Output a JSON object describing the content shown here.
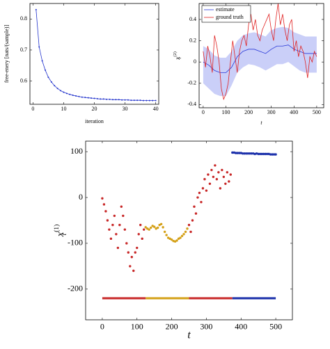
{
  "chart_data": [
    {
      "type": "line",
      "xlabel": "iteration",
      "ylabel": "free-enery [nats/(sample)]",
      "xlim": [
        -1,
        41
      ],
      "xticks": [
        0,
        10,
        20,
        30,
        40
      ],
      "ylim": [
        0.525,
        0.85
      ],
      "yticks": [
        0.6,
        0.7,
        0.8
      ],
      "markers": true,
      "series": [
        {
          "name": "free energy",
          "color": "#2233cc",
          "x": [
            1,
            2,
            3,
            4,
            5,
            6,
            7,
            8,
            9,
            10,
            11,
            12,
            13,
            14,
            15,
            16,
            17,
            18,
            19,
            20,
            21,
            22,
            23,
            24,
            25,
            26,
            27,
            28,
            29,
            30,
            31,
            32,
            33,
            34,
            35,
            36,
            37,
            38,
            39,
            40
          ],
          "values": [
            0.83,
            0.71,
            0.665,
            0.635,
            0.612,
            0.597,
            0.585,
            0.576,
            0.569,
            0.564,
            0.56,
            0.557,
            0.554,
            0.552,
            0.55,
            0.548,
            0.547,
            0.546,
            0.545,
            0.544,
            0.543,
            0.542,
            0.542,
            0.541,
            0.541,
            0.54,
            0.54,
            0.54,
            0.539,
            0.539,
            0.539,
            0.538,
            0.538,
            0.538,
            0.538,
            0.537,
            0.537,
            0.537,
            0.537,
            0.537
          ]
        }
      ]
    },
    {
      "type": "line",
      "xlabel": "t",
      "ylabel": {
        "base": "x",
        "sub": "t",
        "sup": "(2)"
      },
      "xlim": [
        -18,
        531
      ],
      "xticks": [
        0,
        100,
        200,
        300,
        400,
        500
      ],
      "ylim": [
        -0.43,
        0.55
      ],
      "yticks": [
        -0.4,
        -0.2,
        0,
        0.2,
        0.4
      ],
      "legend": "upper left",
      "markers": false,
      "band": {
        "color": "#8a94f0",
        "x": [
          0,
          25,
          50,
          75,
          100,
          125,
          150,
          175,
          200,
          225,
          250,
          275,
          300,
          325,
          350,
          375,
          400,
          425,
          450,
          475,
          500
        ],
        "upper": [
          0.15,
          0.12,
          0.06,
          0.04,
          0.04,
          0.1,
          0.2,
          0.25,
          0.27,
          0.28,
          0.26,
          0.24,
          0.3,
          0.32,
          0.33,
          0.32,
          0.28,
          0.26,
          0.24,
          0.24,
          0.24
        ],
        "lower": [
          -0.2,
          -0.25,
          -0.3,
          -0.32,
          -0.32,
          -0.22,
          -0.1,
          -0.05,
          -0.02,
          -0.03,
          -0.05,
          -0.08,
          -0.05,
          -0.02,
          -0.02,
          0,
          -0.04,
          -0.08,
          -0.1,
          -0.1,
          -0.1
        ]
      },
      "series": [
        {
          "name": "estimate",
          "color": "#2a3ad8",
          "x": [
            0,
            25,
            50,
            75,
            100,
            125,
            150,
            175,
            200,
            225,
            250,
            275,
            300,
            325,
            350,
            375,
            400,
            425,
            450,
            475,
            500
          ],
          "values": [
            0,
            -0.03,
            -0.08,
            -0.1,
            -0.1,
            -0.05,
            0.05,
            0.1,
            0.12,
            0.12,
            0.1,
            0.08,
            0.12,
            0.15,
            0.15,
            0.16,
            0.12,
            0.1,
            0.08,
            0.08,
            0.08
          ]
        },
        {
          "name": "ground truth",
          "color": "#e02020",
          "x": [
            0,
            10,
            20,
            30,
            40,
            50,
            60,
            70,
            80,
            90,
            100,
            110,
            120,
            130,
            140,
            150,
            160,
            170,
            180,
            190,
            200,
            210,
            220,
            230,
            240,
            250,
            260,
            270,
            280,
            290,
            300,
            310,
            320,
            330,
            340,
            350,
            360,
            370,
            380,
            390,
            400,
            410,
            420,
            430,
            440,
            450,
            460,
            470,
            480,
            490,
            500
          ],
          "values": [
            0.1,
            -0.05,
            0.15,
            0.05,
            -0.1,
            0.25,
            0.15,
            0,
            -0.25,
            -0.35,
            -0.3,
            -0.2,
            0,
            0.2,
            0.05,
            -0.1,
            0.1,
            0.2,
            0.25,
            0.15,
            0.35,
            0.45,
            0.3,
            0.4,
            0.25,
            0.2,
            0.3,
            0.35,
            0.4,
            0.45,
            0.3,
            0.2,
            0.4,
            0.55,
            0.35,
            0.45,
            0.3,
            0.2,
            0.35,
            0.4,
            0.1,
            0.2,
            0.05,
            0.15,
            0.1,
            0,
            -0.15,
            0.05,
            0,
            0.1,
            0.05
          ]
        }
      ]
    },
    {
      "type": "scatter",
      "xlabel": "t",
      "ylabel": {
        "base": "x",
        "sub": "t",
        "sup": "(1)"
      },
      "xlim": [
        -48,
        548
      ],
      "xticks": [
        0,
        100,
        200,
        300,
        400,
        500
      ],
      "ylim": [
        -267,
        123
      ],
      "yticks": [
        -200,
        -100,
        0,
        100
      ],
      "regime_y": -220,
      "series": [
        {
          "color": "#c82828",
          "x": [
            0,
            5,
            10,
            15,
            20,
            25,
            30,
            35,
            40,
            45,
            50,
            55,
            60,
            65,
            70,
            75,
            80,
            85,
            90,
            95,
            100,
            105,
            110,
            115,
            120
          ],
          "values": [
            -2,
            -15,
            -30,
            -50,
            -70,
            -90,
            -60,
            -40,
            -80,
            -110,
            -60,
            -20,
            -40,
            -70,
            -100,
            -120,
            -150,
            -130,
            -160,
            -120,
            -110,
            -80,
            -60,
            -90,
            -70
          ]
        },
        {
          "color": "#d4a017",
          "x": [
            125,
            130,
            135,
            140,
            145,
            150,
            155,
            160,
            165,
            170,
            175,
            180,
            185,
            190,
            195,
            200,
            205,
            210,
            215,
            220,
            225,
            230,
            235,
            240,
            245
          ],
          "values": [
            -65,
            -68,
            -70,
            -66,
            -62,
            -64,
            -68,
            -66,
            -60,
            -58,
            -65,
            -75,
            -82,
            -88,
            -90,
            -92,
            -95,
            -96,
            -94,
            -90,
            -88,
            -84,
            -80,
            -75,
            -68
          ]
        },
        {
          "color": "#c82828",
          "x": [
            250,
            255,
            260,
            265,
            270,
            275,
            280,
            285,
            290,
            295,
            300,
            305,
            310,
            315,
            320,
            325,
            330,
            335,
            340,
            345,
            350,
            355,
            360,
            365,
            370
          ],
          "values": [
            -60,
            -75,
            -50,
            -20,
            -35,
            0,
            10,
            -10,
            20,
            40,
            15,
            50,
            30,
            60,
            45,
            70,
            40,
            55,
            20,
            60,
            45,
            30,
            55,
            35,
            50
          ]
        },
        {
          "color": "#1a2faa",
          "x": [
            375,
            380,
            385,
            390,
            395,
            400,
            405,
            410,
            415,
            420,
            425,
            430,
            435,
            440,
            445,
            450,
            455,
            460,
            465,
            470,
            475,
            480,
            485,
            490,
            495,
            500
          ],
          "values": [
            98,
            98,
            97,
            97,
            97,
            97,
            96,
            96,
            96,
            96,
            96,
            96,
            96,
            95,
            96,
            95,
            95,
            95,
            95,
            95,
            95,
            95,
            94,
            94,
            94,
            94
          ]
        }
      ]
    }
  ]
}
